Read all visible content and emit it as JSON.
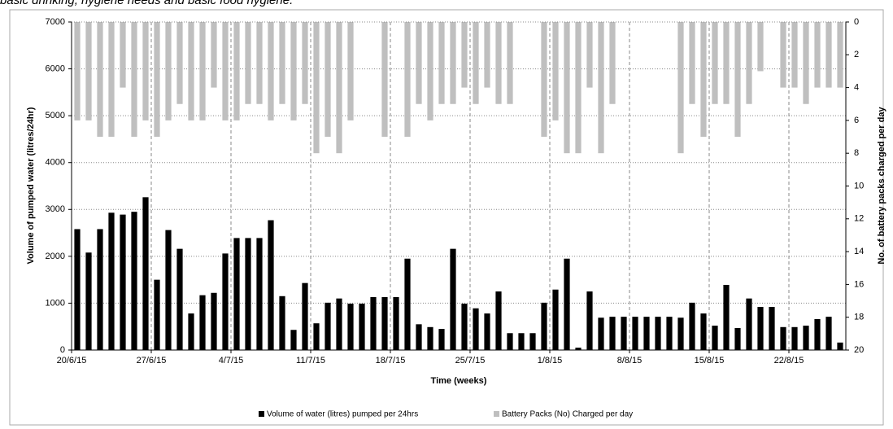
{
  "caption": "basic drinking, hygiene needs and basic food hygiene.",
  "chart_data": {
    "type": "bar",
    "xlabel": "Time (weeks)",
    "ylabel": "Volume  of pumped water (litres/24hr)",
    "y2label": "No. of battery packs charged per day",
    "categories": [
      "20/6/15",
      null,
      null,
      null,
      null,
      null,
      null,
      "27/6/15",
      null,
      null,
      null,
      null,
      null,
      null,
      "4/7/15",
      null,
      null,
      null,
      null,
      null,
      null,
      "11/7/15",
      null,
      null,
      null,
      null,
      null,
      null,
      "18/7/15",
      null,
      null,
      null,
      null,
      null,
      null,
      "25/7/15",
      null,
      null,
      null,
      null,
      null,
      null,
      "1/8/15",
      null,
      null,
      null,
      null,
      null,
      null,
      "8/8/15",
      null,
      null,
      null,
      null,
      null,
      null,
      "15/8/15",
      null,
      null,
      null,
      null,
      null,
      null,
      "22/8/15",
      null,
      null,
      null,
      null
    ],
    "series": [
      {
        "name": "Volume of water (litres) pumped per 24hrs",
        "color": "#000000",
        "axis": "y",
        "values": [
          2580,
          2080,
          2580,
          2930,
          2890,
          2950,
          3260,
          1500,
          2560,
          2160,
          780,
          1170,
          1220,
          2060,
          2390,
          2390,
          2390,
          2770,
          1150,
          430,
          1430,
          570,
          1010,
          1100,
          990,
          990,
          1130,
          1130,
          1130,
          1950,
          550,
          490,
          450,
          2160,
          990,
          890,
          780,
          1250,
          360,
          360,
          360,
          1010,
          1290,
          1950,
          50,
          1250,
          690,
          710,
          710,
          710,
          710,
          710,
          710,
          690,
          1010,
          780,
          520,
          1390,
          470,
          1100,
          920,
          920,
          490,
          490,
          520,
          660,
          710,
          160
        ]
      },
      {
        "name": "Battery Packs (No) Charged per day",
        "color": "#bfbfbf",
        "axis": "y2",
        "values": [
          6,
          6,
          7,
          7,
          4,
          7,
          6,
          7,
          6,
          5,
          6,
          6,
          4,
          6,
          6,
          5,
          5,
          6,
          5,
          6,
          5,
          8,
          7,
          8,
          6,
          0,
          0,
          7,
          0,
          7,
          5,
          6,
          5,
          5,
          4,
          5,
          4,
          5,
          5,
          0,
          0,
          7,
          6,
          8,
          8,
          4,
          8,
          5,
          0,
          0,
          0,
          0,
          0,
          8,
          5,
          7,
          5,
          5,
          7,
          5,
          3,
          0,
          4,
          4,
          5,
          4,
          4,
          4
        ]
      }
    ],
    "ylim": [
      0,
      7000
    ],
    "yticks": [
      0,
      1000,
      2000,
      3000,
      4000,
      5000,
      6000,
      7000
    ],
    "y2lim": [
      20,
      0
    ],
    "y2ticks": [
      0,
      2,
      4,
      6,
      8,
      10,
      12,
      14,
      16,
      18,
      20
    ],
    "grid": true
  }
}
